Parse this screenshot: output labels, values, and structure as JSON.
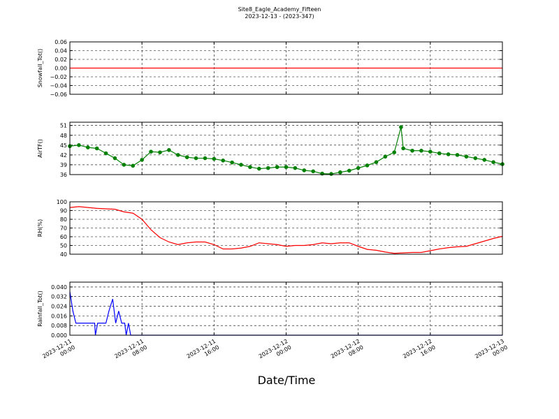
{
  "chart_data": [
    {
      "type": "line",
      "title": "Site8_Eagle_Academy_Fifteen",
      "subtitle": "2023-12-13 - (2023-347)",
      "ylabel": "Snowfall_Tot()",
      "color": "#ff0000",
      "grid": true,
      "x": [
        "2023-12-11 00:00",
        "2023-12-13 00:00"
      ],
      "values": [
        0,
        0
      ],
      "ylim": [
        -0.06,
        0.06
      ],
      "yticks": [
        {
          "value": -0.06,
          "label": "−0.06"
        },
        {
          "value": -0.04,
          "label": "−0.04"
        },
        {
          "value": -0.02,
          "label": "−0.02"
        },
        {
          "value": 0,
          "label": "0.00"
        },
        {
          "value": 0.02,
          "label": "0.02"
        },
        {
          "value": 0.04,
          "label": "0.04"
        },
        {
          "value": 0.06,
          "label": "0.06"
        }
      ]
    },
    {
      "type": "line",
      "ylabel": "AirTF()",
      "color": "#008000",
      "markers": true,
      "grid": true,
      "x": [
        "2023-12-11 00:00",
        "2023-12-11 01:00",
        "2023-12-11 02:00",
        "2023-12-11 03:00",
        "2023-12-11 04:00",
        "2023-12-11 05:00",
        "2023-12-11 06:00",
        "2023-12-11 07:00",
        "2023-12-11 08:00",
        "2023-12-11 09:00",
        "2023-12-11 10:00",
        "2023-12-11 11:00",
        "2023-12-11 12:00",
        "2023-12-11 13:00",
        "2023-12-11 14:00",
        "2023-12-11 15:00",
        "2023-12-11 16:00",
        "2023-12-11 17:00",
        "2023-12-11 18:00",
        "2023-12-11 19:00",
        "2023-12-11 20:00",
        "2023-12-11 21:00",
        "2023-12-11 22:00",
        "2023-12-11 23:00",
        "2023-12-12 00:00",
        "2023-12-12 01:00",
        "2023-12-12 02:00",
        "2023-12-12 03:00",
        "2023-12-12 04:00",
        "2023-12-12 05:00",
        "2023-12-12 06:00",
        "2023-12-12 07:00",
        "2023-12-12 08:00",
        "2023-12-12 09:00",
        "2023-12-12 10:00",
        "2023-12-12 11:00",
        "2023-12-12 12:00",
        "2023-12-12 12:45",
        "2023-12-12 13:00",
        "2023-12-12 14:00",
        "2023-12-12 15:00",
        "2023-12-12 16:00",
        "2023-12-12 17:00",
        "2023-12-12 18:00",
        "2023-12-12 19:00",
        "2023-12-12 20:00",
        "2023-12-12 21:00",
        "2023-12-12 22:00",
        "2023-12-12 23:00",
        "2023-12-13 00:00"
      ],
      "values": [
        44.7,
        45,
        44.3,
        44,
        42.5,
        41,
        39,
        38.7,
        40.5,
        43,
        42.8,
        43.5,
        42,
        41.3,
        41,
        41,
        40.8,
        40.3,
        39.7,
        39,
        38.3,
        37.8,
        38,
        38.3,
        38.3,
        38,
        37.3,
        37,
        36.3,
        36.2,
        36.7,
        37.2,
        38,
        38.8,
        39.8,
        41.5,
        42.8,
        50.5,
        44,
        43.3,
        43.3,
        43,
        42.5,
        42.2,
        42,
        41.5,
        41,
        40.5,
        39.8,
        39.2
      ],
      "ylim": [
        36,
        52
      ],
      "yticks": [
        36,
        39,
        42,
        45,
        48,
        51
      ]
    },
    {
      "type": "line",
      "ylabel": "RH(%)",
      "color": "#ff0000",
      "grid": true,
      "x": [
        "2023-12-11 00:00",
        "2023-12-11 01:00",
        "2023-12-11 02:00",
        "2023-12-11 03:00",
        "2023-12-11 04:00",
        "2023-12-11 05:00",
        "2023-12-11 06:00",
        "2023-12-11 07:00",
        "2023-12-11 08:00",
        "2023-12-11 09:00",
        "2023-12-11 10:00",
        "2023-12-11 11:00",
        "2023-12-11 12:00",
        "2023-12-11 13:00",
        "2023-12-11 14:00",
        "2023-12-11 15:00",
        "2023-12-11 16:00",
        "2023-12-11 17:00",
        "2023-12-11 18:00",
        "2023-12-11 19:00",
        "2023-12-11 20:00",
        "2023-12-11 21:00",
        "2023-12-11 22:00",
        "2023-12-11 23:00",
        "2023-12-12 00:00",
        "2023-12-12 01:00",
        "2023-12-12 02:00",
        "2023-12-12 03:00",
        "2023-12-12 04:00",
        "2023-12-12 05:00",
        "2023-12-12 06:00",
        "2023-12-12 07:00",
        "2023-12-12 08:00",
        "2023-12-12 09:00",
        "2023-12-12 10:00",
        "2023-12-12 11:00",
        "2023-12-12 12:00",
        "2023-12-12 13:00",
        "2023-12-12 14:00",
        "2023-12-12 15:00",
        "2023-12-12 16:00",
        "2023-12-12 17:00",
        "2023-12-12 18:00",
        "2023-12-12 19:00",
        "2023-12-12 20:00",
        "2023-12-12 21:00",
        "2023-12-12 22:00",
        "2023-12-12 23:00",
        "2023-12-13 00:00"
      ],
      "values": [
        93.5,
        94.5,
        93.5,
        92.5,
        92,
        91.5,
        88.5,
        87,
        80,
        68,
        59,
        54,
        51,
        53,
        54,
        54,
        51,
        46,
        46,
        47,
        49,
        53,
        52,
        51,
        49,
        50,
        50,
        51,
        53,
        52,
        53,
        53,
        49,
        45.5,
        44.5,
        42.5,
        41,
        41.5,
        42,
        42,
        44,
        46,
        47.5,
        48.5,
        49,
        52,
        55,
        58,
        60.5
      ],
      "ylim": [
        40,
        100
      ],
      "yticks": [
        40,
        50,
        60,
        70,
        80,
        90,
        100
      ]
    },
    {
      "type": "line",
      "ylabel": "Rainfall_Tot()",
      "xlabel": "Date/Time",
      "color": "#0000ff",
      "grid": true,
      "x": [
        "2023-12-11 00:00",
        "2023-12-11 00:20",
        "2023-12-11 00:40",
        "2023-12-11 02:45",
        "2023-12-11 02:50",
        "2023-12-11 03:05",
        "2023-12-11 04:00",
        "2023-12-11 04:20",
        "2023-12-11 04:45",
        "2023-12-11 05:05",
        "2023-12-11 05:25",
        "2023-12-11 05:45",
        "2023-12-11 06:05",
        "2023-12-11 06:15",
        "2023-12-11 06:30",
        "2023-12-11 06:45",
        "2023-12-13 00:00"
      ],
      "values": [
        0.036,
        0.02,
        0.01,
        0.01,
        0,
        0.01,
        0.01,
        0.02,
        0.03,
        0.01,
        0.02,
        0.01,
        0.01,
        0,
        0.01,
        0,
        0
      ],
      "ylim": [
        0,
        0.044
      ],
      "yticks": [
        {
          "value": 0,
          "label": "0.000"
        },
        {
          "value": 0.008,
          "label": "0.008"
        },
        {
          "value": 0.016,
          "label": "0.016"
        },
        {
          "value": 0.024,
          "label": "0.024"
        },
        {
          "value": 0.032,
          "label": "0.032"
        },
        {
          "value": 0.04,
          "label": "0.040"
        }
      ],
      "xlim": [
        "2023-12-11 00:00",
        "2023-12-13 00:00"
      ],
      "xticks": [
        {
          "value": "2023-12-11 00:00",
          "label": "2023-12-11 00:00"
        },
        {
          "value": "2023-12-11 08:00",
          "label": "2023-12-11 08:00"
        },
        {
          "value": "2023-12-11 16:00",
          "label": "2023-12-11 16:00"
        },
        {
          "value": "2023-12-12 00:00",
          "label": "2023-12-12 00:00"
        },
        {
          "value": "2023-12-12 08:00",
          "label": "2023-12-12 08:00"
        },
        {
          "value": "2023-12-12 16:00",
          "label": "2023-12-12 16:00"
        },
        {
          "value": "2023-12-13 00:00",
          "label": "2023-12-13 00:00"
        }
      ]
    }
  ]
}
